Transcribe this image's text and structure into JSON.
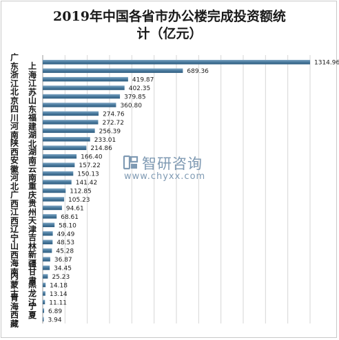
{
  "chart_data": {
    "type": "bar",
    "orientation": "horizontal",
    "title": "2019年中国各省市办公楼完成投资额统计（亿元）",
    "title_lines": [
      "2019年中国各省市办公楼完成投资额统",
      "计（亿元）"
    ],
    "categories": [
      "广东",
      "上海",
      "浙江",
      "江苏",
      "北京",
      "山东",
      "四川",
      "福建",
      "河南",
      "湖北",
      "陕西",
      "湖南",
      "安徽",
      "云南",
      "河北",
      "重庆",
      "广西",
      "贵州",
      "江西",
      "天津",
      "辽宁",
      "吉林",
      "山西",
      "新疆",
      "海南",
      "甘肃",
      "内蒙古",
      "黑龙江",
      "青海",
      "宁夏",
      "西藏"
    ],
    "values": [
      1314.96,
      689.36,
      419.87,
      402.35,
      379.85,
      360.8,
      274.76,
      272.72,
      256.39,
      233.01,
      214.86,
      166.4,
      157.22,
      150.13,
      141.42,
      112.85,
      105.23,
      94.61,
      68.61,
      58.1,
      49.49,
      48.53,
      45.28,
      36.87,
      34.45,
      25.23,
      14.18,
      13.14,
      11.11,
      6.89,
      3.94
    ],
    "value_labels": [
      "1314.96",
      "689.36",
      "419.87",
      "402.35",
      "379.85",
      "360.80",
      "274.76",
      "272.72",
      "256.39",
      "233.01",
      "214.86",
      "166.40",
      "157.22",
      "150.13",
      "141.42",
      "112.85",
      "105.23",
      "94.61",
      "68.61",
      "58.10",
      "49.49",
      "48.53",
      "45.28",
      "36.87",
      "34.45",
      "25.23",
      "14.18",
      "13.14",
      "11.11",
      "6.89",
      "3.94"
    ],
    "xlim": [
      0,
      1314.96
    ],
    "grid": true,
    "legend": "none",
    "xlabel": "",
    "ylabel": ""
  },
  "colors": {
    "bar": "#4d7da0",
    "bar_edge": "#2f5d80",
    "grid": "#d6d6d6",
    "text": "#1a1a1a",
    "watermark": "#7f9ab3"
  },
  "watermark": {
    "name": "智研咨询",
    "url": "www.chyxx.com",
    "icon": "zhiyan-logo-icon"
  }
}
